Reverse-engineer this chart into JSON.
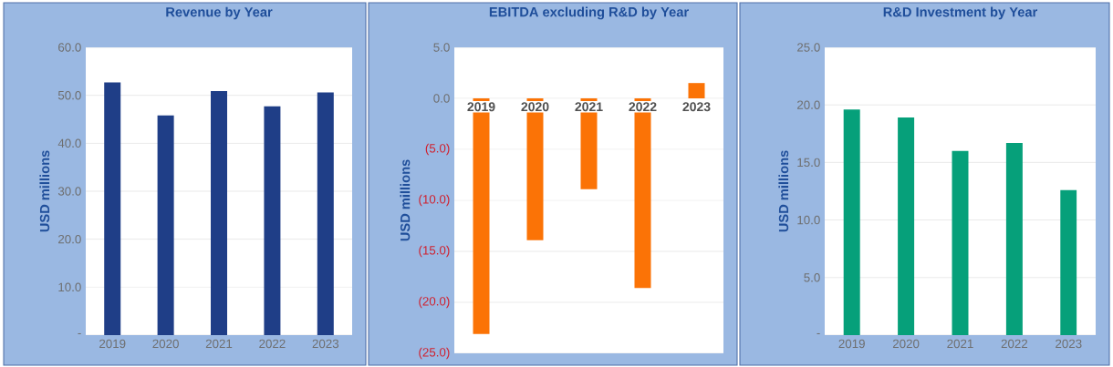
{
  "chart_data": [
    {
      "type": "bar",
      "title": "Revenue by Year",
      "ylabel": "USD millions",
      "categories": [
        "2019",
        "2020",
        "2021",
        "2022",
        "2023"
      ],
      "values": [
        52.7,
        45.8,
        50.9,
        47.7,
        50.6
      ],
      "color": "#1f3e87",
      "ylim": [
        0,
        60
      ],
      "yticks": [
        {
          "value": 0,
          "label": "-"
        },
        {
          "value": 10,
          "label": "10.0"
        },
        {
          "value": 20,
          "label": "20.0"
        },
        {
          "value": 30,
          "label": "30.0"
        },
        {
          "value": 40,
          "label": "40.0"
        },
        {
          "value": 50,
          "label": "50.0"
        },
        {
          "value": 60,
          "label": "60.0"
        }
      ],
      "grid": "y"
    },
    {
      "type": "bar",
      "title": "EBITDA excluding R&D by Year",
      "ylabel": "USD millions",
      "categories": [
        "2019",
        "2020",
        "2021",
        "2022",
        "2023"
      ],
      "values": [
        -23.1,
        -13.9,
        -8.9,
        -18.6,
        1.5
      ],
      "color": "#fb7306",
      "ylim": [
        -25,
        5
      ],
      "yticks": [
        {
          "value": -25,
          "label": "(25.0)"
        },
        {
          "value": -20,
          "label": "(20.0)"
        },
        {
          "value": -15,
          "label": "(15.0)"
        },
        {
          "value": -10,
          "label": "(10.0)"
        },
        {
          "value": -5,
          "label": "(5.0)"
        },
        {
          "value": 0,
          "label": "0.0"
        },
        {
          "value": 5,
          "label": "5.0"
        }
      ],
      "grid": "y"
    },
    {
      "type": "bar",
      "title": "R&D Investment by Year",
      "ylabel": "USD millions",
      "categories": [
        "2019",
        "2020",
        "2021",
        "2022",
        "2023"
      ],
      "values": [
        19.6,
        18.9,
        16.0,
        16.7,
        12.6
      ],
      "color": "#06a07a",
      "ylim": [
        0,
        25
      ],
      "yticks": [
        {
          "value": 0,
          "label": "-"
        },
        {
          "value": 5,
          "label": "5.0"
        },
        {
          "value": 10,
          "label": "10.0"
        },
        {
          "value": 15,
          "label": "15.0"
        },
        {
          "value": 20,
          "label": "20.0"
        },
        {
          "value": 25,
          "label": "25.0"
        }
      ],
      "grid": "y"
    }
  ]
}
